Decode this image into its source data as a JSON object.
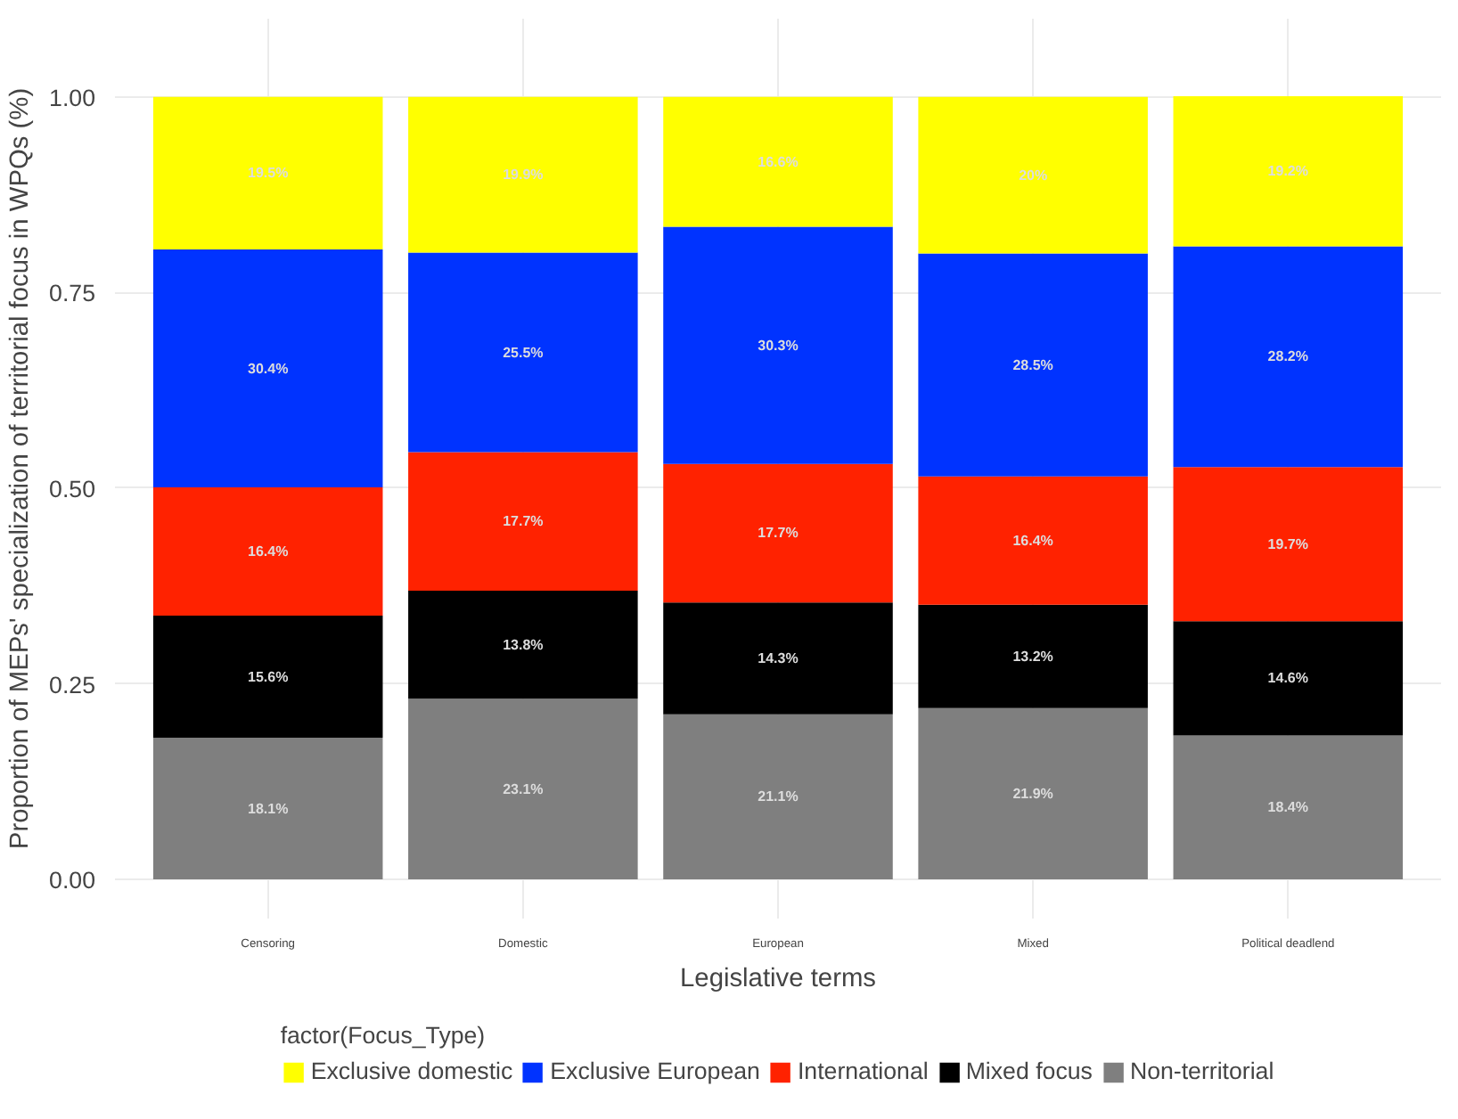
{
  "chart_data": {
    "type": "bar",
    "stacked": true,
    "xlabel": "Legislative terms",
    "ylabel": "Proportion of MEPs' specialization of territorial focus in WPQs (%)",
    "legend_title": "factor(Focus_Type)",
    "legend": "bottom",
    "grid": true,
    "categories": [
      "Censoring",
      "Domestic",
      "European",
      "Mixed",
      "Political deadlend"
    ],
    "ylim": [
      -0.05,
      1.1
    ],
    "yticks": [
      "0.00",
      "0.25",
      "0.50",
      "0.75",
      "1.00"
    ],
    "series": [
      {
        "name": "Non-territorial",
        "color": "#7f7f7f",
        "values": [
          0.181,
          0.231,
          0.211,
          0.219,
          0.184
        ],
        "value_labels": [
          "18.1%",
          "23.1%",
          "21.1%",
          "21.9%",
          "18.4%"
        ]
      },
      {
        "name": "Mixed focus",
        "color": "#000000",
        "values": [
          0.156,
          0.138,
          0.143,
          0.132,
          0.146
        ],
        "value_labels": [
          "15.6%",
          "13.8%",
          "14.3%",
          "13.2%",
          "14.6%"
        ]
      },
      {
        "name": "International",
        "color": "#ff2200",
        "values": [
          0.164,
          0.177,
          0.177,
          0.164,
          0.197
        ],
        "value_labels": [
          "16.4%",
          "17.7%",
          "17.7%",
          "16.4%",
          "19.7%"
        ]
      },
      {
        "name": "Exclusive European",
        "color": "#0033ff",
        "values": [
          0.304,
          0.255,
          0.303,
          0.285,
          0.282
        ],
        "value_labels": [
          "30.4%",
          "25.5%",
          "30.3%",
          "28.5%",
          "28.2%"
        ]
      },
      {
        "name": "Exclusive domestic",
        "color": "#ffff00",
        "values": [
          0.195,
          0.199,
          0.166,
          0.2,
          0.192
        ],
        "value_labels": [
          "19.5%",
          "19.9%",
          "16.6%",
          "20%",
          "19.2%"
        ]
      }
    ]
  }
}
